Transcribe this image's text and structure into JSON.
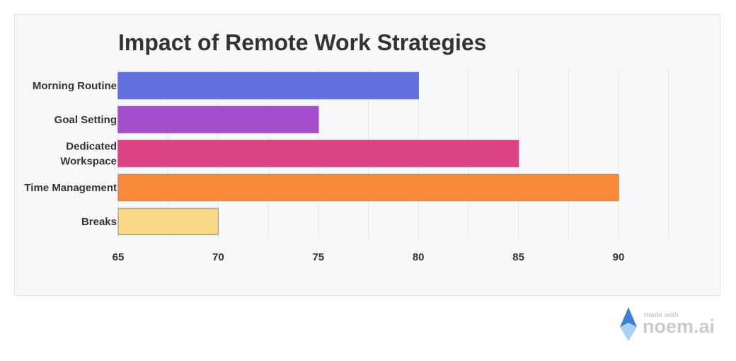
{
  "chart_data": {
    "type": "bar",
    "orientation": "horizontal",
    "title": "Impact of Remote Work Strategies",
    "categories": [
      [
        "Morning Routine"
      ],
      [
        "Goal Setting"
      ],
      [
        "Dedicated",
        "Workspace"
      ],
      [
        "Time Management"
      ],
      [
        "Breaks"
      ]
    ],
    "values": [
      80,
      75,
      85,
      90,
      70
    ],
    "xlim": [
      65,
      90
    ],
    "xticks": [
      65,
      70,
      75,
      80,
      85,
      90
    ],
    "xlabel": "",
    "ylabel": "",
    "grid": true,
    "colors": [
      "#6570df",
      "#a64fcc",
      "#dc4486",
      "#f98a3a",
      "#fcd98a"
    ],
    "border_colors": [
      "#6570df",
      "#a64fcc",
      "#dc4486",
      "#c98d5a",
      "#b4a584"
    ]
  },
  "watermark": {
    "line1": "made with",
    "line2": "noem.ai"
  }
}
